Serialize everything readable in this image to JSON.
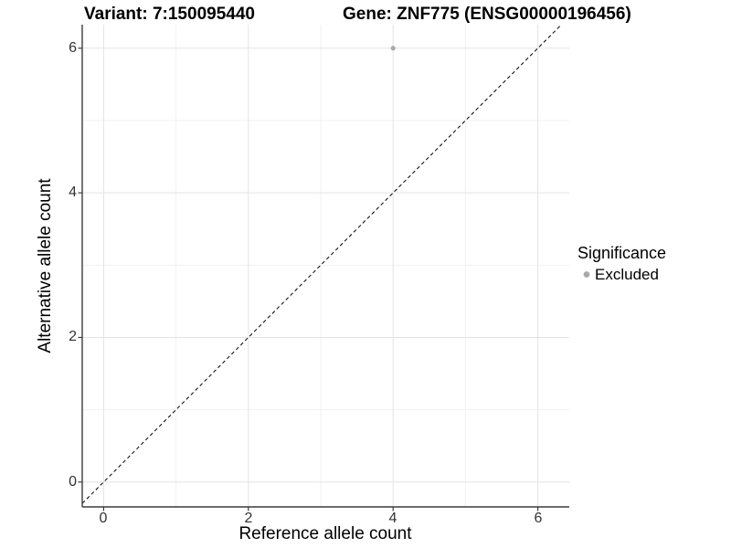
{
  "chart_data": {
    "type": "scatter",
    "titles": {
      "left": "Variant: 7:150095440",
      "right": "Gene: ZNF775 (ENSG00000196456)"
    },
    "xlabel": "Reference allele count",
    "ylabel": "Alternative allele count",
    "x_ticks": [
      0,
      2,
      4,
      6
    ],
    "y_ticks": [
      0,
      2,
      4,
      6
    ],
    "x_minor_ticks": [
      1,
      3,
      5
    ],
    "y_minor_ticks": [
      1,
      3,
      5
    ],
    "xlim": [
      -0.3,
      6.43
    ],
    "ylim": [
      -0.34,
      6.33
    ],
    "grid": "major+minor",
    "points": [
      {
        "x": 4,
        "y": 6,
        "significance": "Excluded"
      }
    ],
    "point_style": {
      "color": "#aaaaaa",
      "radius": 2.6
    },
    "identity_line": {
      "slope": 1,
      "intercept": 0,
      "style": "dashed",
      "color": "#000000"
    },
    "legend": {
      "title": "Significance",
      "position": "right",
      "entries": [
        {
          "label": "Excluded",
          "color": "#aaaaaa"
        }
      ]
    },
    "colors": {
      "background": "#ffffff",
      "grid_major": "#e3e3e3",
      "grid_minor": "#f1f1f1",
      "axis_line": "#3c3c3c",
      "tick_text": "#333333",
      "text": "#000000"
    }
  }
}
